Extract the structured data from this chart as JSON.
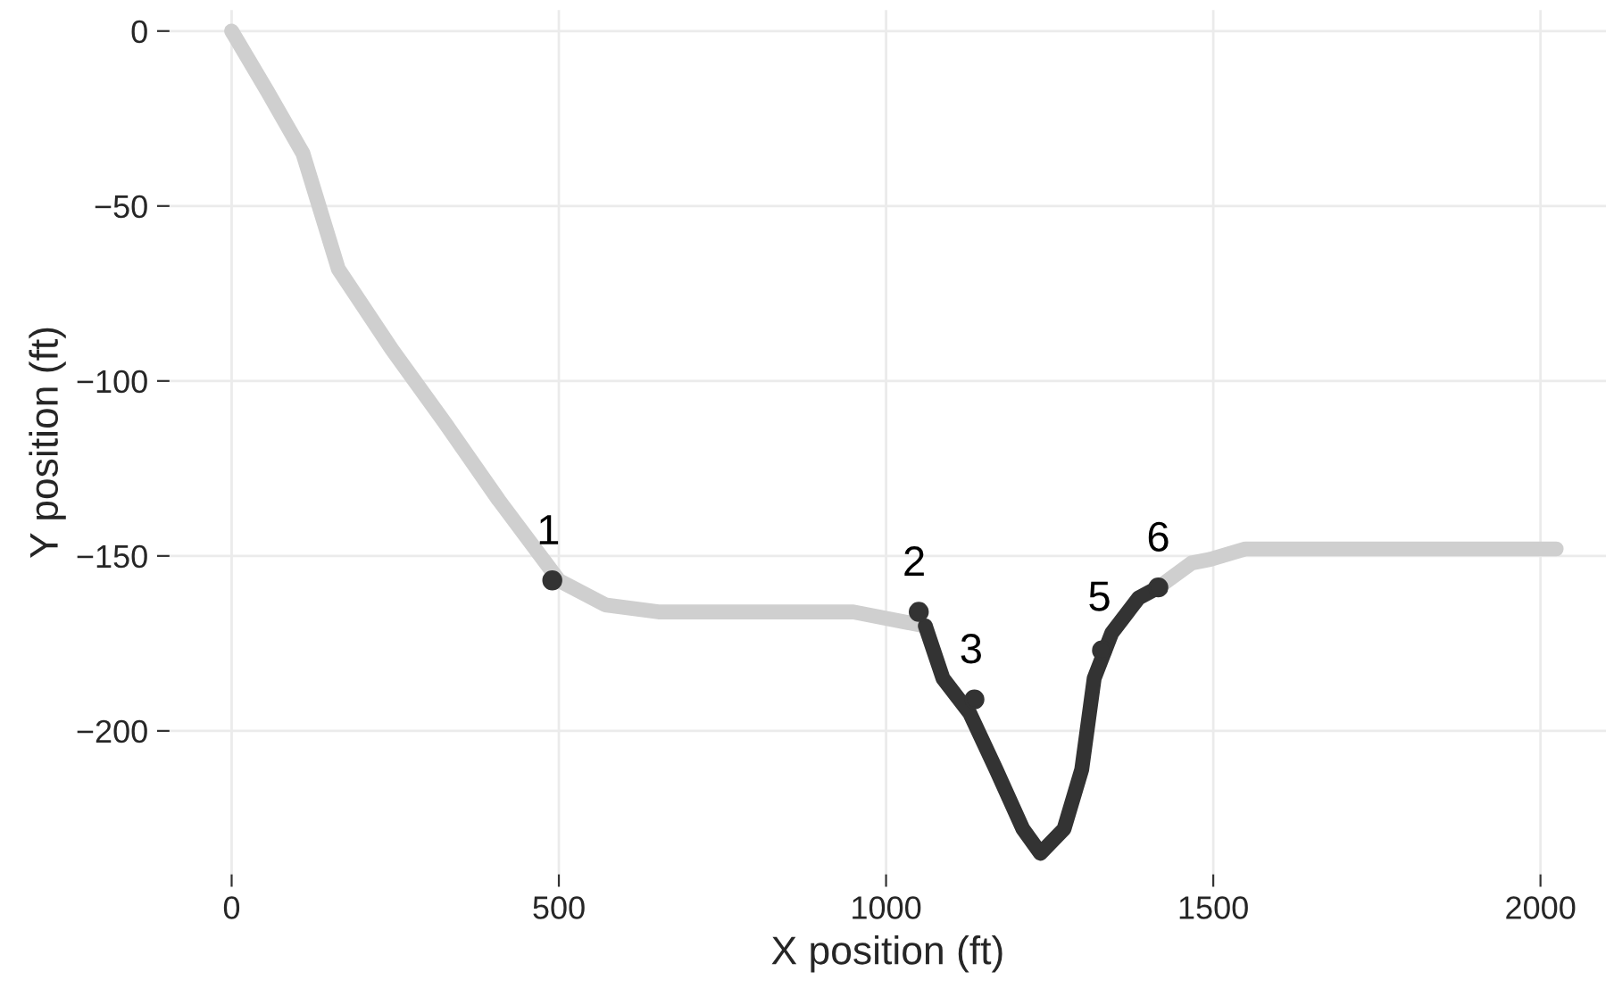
{
  "chart_data": {
    "type": "line",
    "xlabel": "X position (ft)",
    "ylabel": "Y position (ft)",
    "xlim": [
      -95,
      2100
    ],
    "ylim": [
      -241,
      6
    ],
    "xticks": [
      0,
      500,
      1000,
      1500,
      2000
    ],
    "yticks": [
      0,
      -50,
      -100,
      -150,
      -200
    ],
    "grid": true,
    "legend": false,
    "series": [
      {
        "color": "#cfcfcf",
        "x": [
          0,
          54,
          109,
          163,
          245,
          326,
          408,
          500,
          571,
          652,
          800,
          950,
          1060
        ],
        "values": [
          0,
          -17,
          -35,
          -68,
          -91,
          -112,
          -134,
          -157,
          -164,
          -166,
          -166,
          -166,
          -170
        ]
      },
      {
        "color": "#333333",
        "x": [
          1060,
          1087,
          1128,
          1168,
          1209,
          1236,
          1272,
          1299,
          1318,
          1345,
          1386,
          1416
        ],
        "values": [
          -170,
          -185,
          -195,
          -211,
          -228,
          -235,
          -228,
          -211,
          -185,
          -172,
          -162,
          -159
        ]
      },
      {
        "color": "#cfcfcf",
        "x": [
          1416,
          1467,
          1495,
          1549,
          1603,
          1800,
          2024
        ],
        "values": [
          -159,
          -152,
          -151,
          -148,
          -148,
          -148,
          -148
        ]
      },
      {
        "type": "scatter",
        "color": "#333333",
        "x": [
          490,
          1050,
          1135,
          1330,
          1416
        ],
        "values": [
          -157,
          -166,
          -191,
          -177,
          -159
        ]
      }
    ],
    "annotations": [
      {
        "text": "1",
        "x": 484,
        "y": -152
      },
      {
        "text": "2",
        "x": 1043,
        "y": -161
      },
      {
        "text": "3",
        "x": 1130,
        "y": -186
      },
      {
        "text": "5",
        "x": 1326,
        "y": -171
      },
      {
        "text": "6",
        "x": 1416,
        "y": -154
      }
    ]
  }
}
